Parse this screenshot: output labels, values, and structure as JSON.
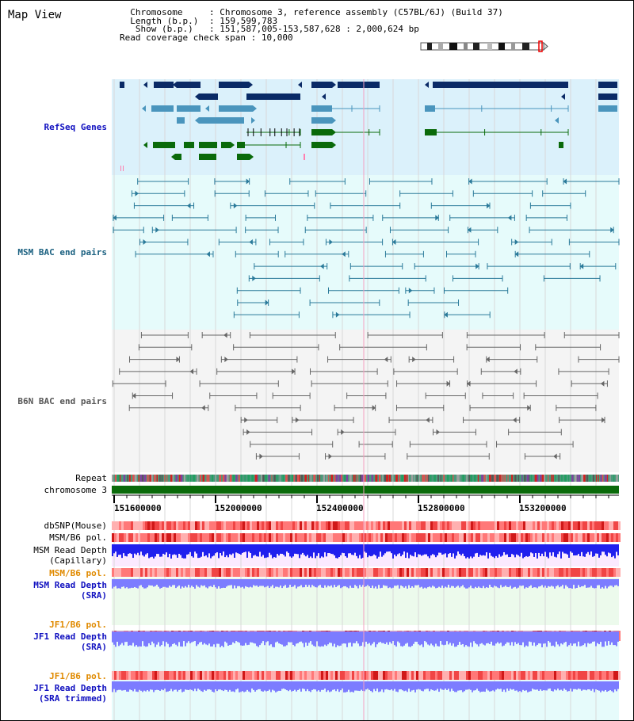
{
  "title": "Map View",
  "info": {
    "chromosome_label": "Chromosome",
    "chromosome_value": "Chromosome 3, reference assembly (C57BL/6J) (Build 37)",
    "length_label": "Length (b.p.)",
    "length_value": "159,599,783",
    "show_label": "Show (b.p.)",
    "show_value": "151,587,005-153,587,628 : 2,000,624 bp",
    "coverage_label": "Read coverage check span",
    "coverage_value": "10,000"
  },
  "tracks": {
    "refseq": "RefSeq Genes",
    "msm_bac": "MSM BAC end pairs",
    "b6n_bac": "B6N BAC end pairs",
    "repeat": "Repeat",
    "chromosome": "chromosome 3",
    "dbsnp": "dbSNP(Mouse)",
    "msm_pol_1": "MSM/B6 pol.",
    "msm_depth_cap_1": "MSM Read Depth",
    "msm_depth_cap_2": "(Capillary)",
    "msm_pol_2": "MSM/B6 pol.",
    "msm_depth_sra_1": "MSM Read Depth",
    "msm_depth_sra_2": "(SRA)",
    "jf1_pol_1": "JF1/B6 pol.",
    "jf1_depth_1": "JF1 Read Depth",
    "jf1_depth_2": "(SRA)",
    "jf1_pol_2": "JF1/B6 pol.",
    "jf1_trim_1": "JF1 Read Depth",
    "jf1_trim_2": "(SRA trimmed)"
  },
  "ruler": {
    "ticks": [
      "151600000",
      "152000000",
      "152400000",
      "152800000",
      "153200000"
    ]
  },
  "colors": {
    "refseq_bg": "#dbf1fb",
    "msm_bg": "#e6fbfb",
    "b6n_bg": "#f4f4f4",
    "gene_dark": "#0a2a66",
    "gene_mid": "#4a95bd",
    "gene_green": "#0a6a0a",
    "msm_pair": "#2a7a9a",
    "b6n_pair": "#666666",
    "chromosome": "#0a6a0a",
    "depth_blue": "#2020ee",
    "depth_light": "#7c7cff"
  }
}
